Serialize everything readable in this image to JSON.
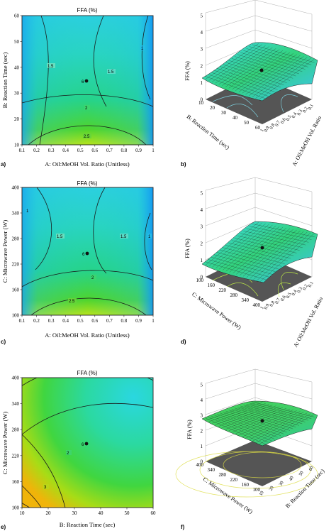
{
  "figure": {
    "panels": [
      {
        "id": "a",
        "kind": "contour",
        "label": "a)",
        "title": "FFA (%)",
        "xlabel": "A: Oil:MeOH Vol. Ratio (Unitless)",
        "ylabel": "B: Reaction Time (sec)",
        "xticks": [
          "0.1",
          "0.2",
          "0.3",
          "0.4",
          "0.5",
          "0.6",
          "0.7",
          "0.8",
          "0.9",
          "1"
        ],
        "yticks": [
          "10",
          "20",
          "30",
          "40",
          "50",
          "60"
        ],
        "contour_labels": [
          "1.5",
          "1.5",
          "2",
          "2.5",
          "1"
        ],
        "center_label": "6"
      },
      {
        "id": "b",
        "kind": "surface",
        "label": "b)",
        "zlabel": "FFA (%)",
        "zticks": [
          "0",
          "1",
          "2",
          "3",
          "4",
          "5"
        ],
        "xlabel": "B: Reaction Time (sec)",
        "xticks": [
          "10",
          "20",
          "30",
          "40",
          "50",
          "60"
        ],
        "ylabel": "A: Oil:MeOH Vol. Ratio",
        "yticks": [
          "0.1",
          "0.2",
          "0.3",
          "0.4",
          "0.5",
          "0.6",
          "0.7",
          "0.8",
          "0.9",
          "1"
        ]
      },
      {
        "id": "c",
        "kind": "contour",
        "label": "c)",
        "title": "FFA (%)",
        "xlabel": "A: Oil:MeOH Vol. Ratio (Unitless)",
        "ylabel": "C: Microwave Power (W)",
        "xticks": [
          "0.1",
          "0.2",
          "0.3",
          "0.4",
          "0.5",
          "0.6",
          "0.7",
          "0.8",
          "0.9",
          "1"
        ],
        "yticks": [
          "100",
          "160",
          "220",
          "280",
          "340",
          "400"
        ],
        "contour_labels": [
          "1.5",
          "1.5",
          "2",
          "2.5",
          "1",
          "1"
        ],
        "center_label": "6"
      },
      {
        "id": "d",
        "kind": "surface",
        "label": "d)",
        "zlabel": "FFA (%)",
        "zticks": [
          "0",
          "1",
          "2",
          "3",
          "4",
          "5"
        ],
        "xlabel": "C: Microwave Power (W)",
        "xticks": [
          "100",
          "160",
          "220",
          "280",
          "340",
          "400"
        ],
        "ylabel": "A: Oil:MeOH Vol. Ratio",
        "yticks": [
          "0.1",
          "0.2",
          "0.3",
          "0.4",
          "0.5",
          "0.6",
          "0.7",
          "0.8",
          "0.9",
          "1"
        ]
      },
      {
        "id": "e",
        "kind": "contour",
        "label": "e)",
        "title": "FFA (%)",
        "xlabel": "B: Reaction Time (sec)",
        "ylabel": "C: Microwave Power (W)",
        "xticks": [
          "10",
          "20",
          "30",
          "40",
          "50",
          "60"
        ],
        "yticks": [
          "100",
          "160",
          "220",
          "280",
          "340",
          "400"
        ],
        "contour_labels": [
          "2",
          "3"
        ],
        "center_label": "6"
      },
      {
        "id": "f",
        "kind": "surface",
        "label": "f)",
        "zlabel": "FFA (%)",
        "zticks": [
          "0",
          "1",
          "2",
          "3",
          "4",
          "5"
        ],
        "xlabel": "C: Microwave Power (W)",
        "xticks": [
          "100",
          "160",
          "220",
          "280",
          "340",
          "400"
        ],
        "ylabel": "B: Reaction Time (sec)",
        "yticks": [
          "10",
          "20",
          "30",
          "40",
          "50",
          "60"
        ]
      }
    ]
  }
}
